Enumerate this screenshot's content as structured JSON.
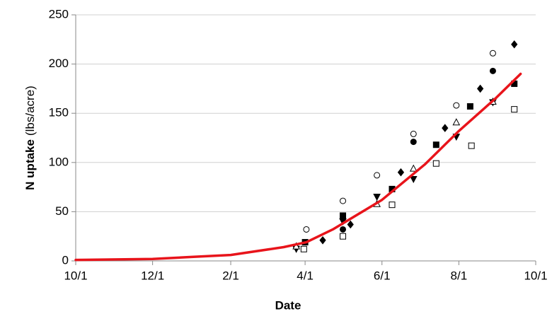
{
  "chart_data": {
    "type": "scatter",
    "ylabel_bold": "N uptake",
    "ylabel_rest": "(lbs/acre)",
    "xlabel": "Date",
    "xlim": [
      0,
      365
    ],
    "xticks": [
      {
        "value": 0,
        "label": "10/1"
      },
      {
        "value": 61,
        "label": "12/1"
      },
      {
        "value": 123,
        "label": "2/1"
      },
      {
        "value": 182,
        "label": "4/1"
      },
      {
        "value": 243,
        "label": "6/1"
      },
      {
        "value": 304,
        "label": "8/1"
      },
      {
        "value": 365,
        "label": "10/1"
      }
    ],
    "ylim": [
      0,
      250
    ],
    "yticks": [
      0,
      50,
      100,
      150,
      200,
      250
    ],
    "grid": true,
    "series": [
      {
        "marker": "diamond",
        "filled": true,
        "color": "#000000",
        "x": [
          175,
          196,
          218,
          258,
          293,
          321,
          348
        ],
        "values": [
          14,
          21,
          37,
          90,
          135,
          175,
          220
        ]
      },
      {
        "marker": "circle",
        "filled": false,
        "color": "#000000",
        "x": [
          183,
          212,
          239,
          268,
          302,
          331
        ],
        "values": [
          32,
          61,
          87,
          129,
          158,
          211
        ]
      },
      {
        "marker": "circle",
        "filled": true,
        "color": "#000000",
        "x": [
          212,
          268,
          331
        ],
        "values": [
          32,
          121,
          193
        ]
      },
      {
        "marker": "square",
        "filled": true,
        "color": "#000000",
        "x": [
          182,
          212,
          251,
          286,
          313,
          348
        ],
        "values": [
          19,
          46,
          73,
          118,
          157,
          180
        ]
      },
      {
        "marker": "square",
        "filled": false,
        "color": "#000000",
        "x": [
          181,
          212,
          251,
          286,
          314,
          348
        ],
        "values": [
          12,
          25,
          57,
          99,
          117,
          154
        ]
      },
      {
        "marker": "triangle-down",
        "filled": true,
        "color": "#000000",
        "x": [
          175,
          212,
          239,
          268,
          302,
          331
        ],
        "values": [
          12,
          40,
          65,
          83,
          126,
          161
        ]
      },
      {
        "marker": "triangle-up",
        "filled": false,
        "color": "#000000",
        "x": [
          175,
          239,
          268,
          302,
          331
        ],
        "values": [
          15,
          58,
          94,
          141,
          162
        ]
      }
    ],
    "fit": {
      "color": "#e8141b",
      "x": [
        0,
        61,
        92,
        123,
        165,
        183,
        204,
        243,
        277,
        304,
        333,
        353
      ],
      "values": [
        1,
        2,
        4,
        6,
        14,
        19,
        32,
        62,
        98,
        132,
        165,
        190
      ]
    }
  }
}
